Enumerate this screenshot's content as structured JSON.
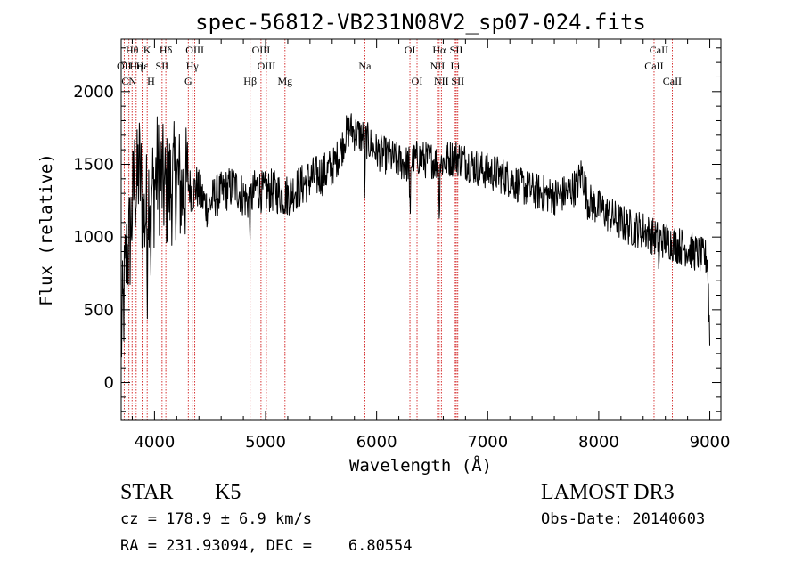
{
  "chart_data": {
    "type": "line",
    "title": "spec-56812-VB231N08V2_sp07-024.fits",
    "xlabel": "Wavelength (Å)",
    "ylabel": "Flux (relative)",
    "xlim": [
      3700,
      9100
    ],
    "ylim": [
      -260,
      2360
    ],
    "x_ticks": [
      4000,
      5000,
      6000,
      7000,
      8000,
      9000
    ],
    "x_tick_labels": [
      "4000",
      "5000",
      "6000",
      "7000",
      "8000",
      "9000"
    ],
    "y_ticks": [
      0,
      500,
      1000,
      1500,
      2000
    ],
    "y_tick_labels": [
      "0",
      "500",
      "1000",
      "1500",
      "2000"
    ],
    "spectrum_anchors": {
      "wavelength": [
        3700,
        3720,
        3740,
        3760,
        3780,
        3800,
        3820,
        3840,
        3860,
        3880,
        3900,
        3930,
        3960,
        3990,
        4020,
        4060,
        4100,
        4150,
        4200,
        4250,
        4300,
        4340,
        4380,
        4420,
        4480,
        4540,
        4600,
        4660,
        4720,
        4780,
        4840,
        4880,
        4920,
        4980,
        5050,
        5120,
        5180,
        5250,
        5320,
        5400,
        5480,
        5560,
        5620,
        5680,
        5720,
        5760,
        5800,
        5850,
        5890,
        5930,
        5980,
        6050,
        6120,
        6200,
        6280,
        6330,
        6380,
        6440,
        6500,
        6560,
        6600,
        6660,
        6720,
        6800,
        6900,
        7000,
        7100,
        7200,
        7300,
        7400,
        7500,
        7600,
        7700,
        7800,
        7850,
        7900,
        8000,
        8100,
        8200,
        8300,
        8400,
        8500,
        8540,
        8600,
        8700,
        8800,
        8900,
        8980,
        9000
      ],
      "flux": [
        300,
        500,
        800,
        900,
        1000,
        1200,
        1400,
        1300,
        1500,
        1350,
        1100,
        1200,
        1400,
        1300,
        1450,
        1400,
        1300,
        1350,
        1400,
        1300,
        1380,
        1300,
        1350,
        1280,
        1200,
        1280,
        1300,
        1330,
        1350,
        1300,
        1250,
        1280,
        1350,
        1300,
        1320,
        1300,
        1280,
        1320,
        1350,
        1400,
        1420,
        1450,
        1500,
        1600,
        1700,
        1750,
        1720,
        1700,
        1680,
        1650,
        1600,
        1570,
        1550,
        1520,
        1500,
        1520,
        1550,
        1530,
        1530,
        1500,
        1520,
        1540,
        1550,
        1520,
        1480,
        1450,
        1430,
        1400,
        1350,
        1320,
        1300,
        1280,
        1300,
        1350,
        1450,
        1250,
        1200,
        1150,
        1100,
        1060,
        1050,
        1000,
        980,
        980,
        950,
        920,
        880,
        850,
        300
      ]
    },
    "lines": [
      {
        "label": "Hθ",
        "wavelength": 3798,
        "row": 0
      },
      {
        "label": "OII",
        "wavelength": 3727,
        "row": 1
      },
      {
        "label": "Hη",
        "wavelength": 3835,
        "row": 1
      },
      {
        "label": "K",
        "wavelength": 3934,
        "row": 0
      },
      {
        "label": "Hε",
        "wavelength": 3889,
        "row": 1
      },
      {
        "label": "SII",
        "wavelength": 4068,
        "row": 1
      },
      {
        "label": "Hδ",
        "wavelength": 4102,
        "row": 0
      },
      {
        "label": "CN",
        "wavelength": 3770,
        "row": 2
      },
      {
        "label": "H",
        "wavelength": 3968,
        "row": 2
      },
      {
        "label": "OIII",
        "wavelength": 4363,
        "row": 0
      },
      {
        "label": "Hγ",
        "wavelength": 4340,
        "row": 1
      },
      {
        "label": "G",
        "wavelength": 4304,
        "row": 2
      },
      {
        "label": "Hβ",
        "wavelength": 4861,
        "row": 2
      },
      {
        "label": "OIII",
        "wavelength": 4959,
        "row": 0
      },
      {
        "label": "OIII",
        "wavelength": 5007,
        "row": 1
      },
      {
        "label": "Mg",
        "wavelength": 5175,
        "row": 2
      },
      {
        "label": "Na",
        "wavelength": 5894,
        "row": 1
      },
      {
        "label": "OI",
        "wavelength": 6300,
        "row": 0
      },
      {
        "label": "OI",
        "wavelength": 6364,
        "row": 2
      },
      {
        "label": "Hα",
        "wavelength": 6563,
        "row": 0
      },
      {
        "label": "NII",
        "wavelength": 6548,
        "row": 1
      },
      {
        "label": "NII",
        "wavelength": 6583,
        "row": 2
      },
      {
        "label": "SII",
        "wavelength": 6717,
        "row": 0
      },
      {
        "label": "Li",
        "wavelength": 6708,
        "row": 1
      },
      {
        "label": "SII",
        "wavelength": 6731,
        "row": 2
      },
      {
        "label": "CaII",
        "wavelength": 8542,
        "row": 0
      },
      {
        "label": "CaII",
        "wavelength": 8498,
        "row": 1
      },
      {
        "label": "CaII",
        "wavelength": 8662,
        "row": 2
      }
    ]
  },
  "footer": {
    "class_label": "STAR",
    "subclass": "K5",
    "survey": "LAMOST DR3",
    "cz": "cz = 178.9 ± 6.9 km/s",
    "obs_date": "Obs-Date: 20140603",
    "coords": "RA = 231.93094, DEC =    6.80554"
  },
  "colors": {
    "spectrum": "#000000",
    "line_markers": "#cc0000",
    "axes": "#000000",
    "background": "#ffffff"
  }
}
